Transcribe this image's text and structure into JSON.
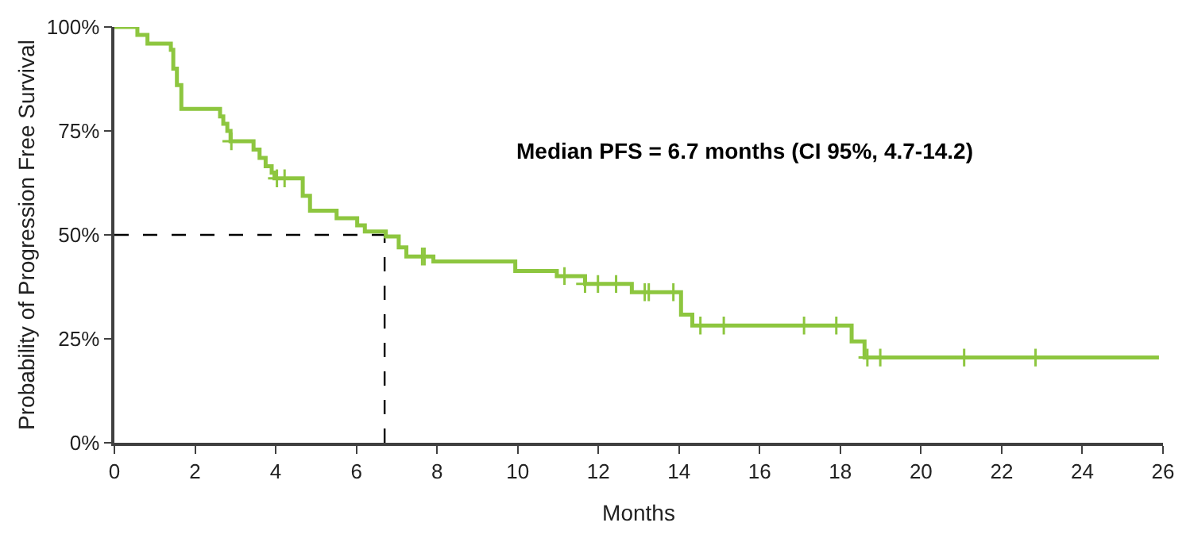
{
  "chart_data": {
    "type": "step",
    "xlabel": "Months",
    "ylabel": "Probability of Progression Free Survival",
    "xlim": [
      0,
      26
    ],
    "xticks": [
      0,
      2,
      4,
      6,
      8,
      10,
      12,
      14,
      16,
      18,
      20,
      22,
      24,
      26
    ],
    "ylim": [
      0,
      100
    ],
    "yticks": [
      {
        "value": 0,
        "label": "0%"
      },
      {
        "value": 25,
        "label": "25%"
      },
      {
        "value": 50,
        "label": "50%"
      },
      {
        "value": 75,
        "label": "75%"
      },
      {
        "value": 100,
        "label": "100%"
      }
    ],
    "grid": false,
    "annotations": [
      "Median PFS = 6.7 months (CI 95%, 4.7-14.2)"
    ],
    "ref_lines": [
      {
        "axis": "y",
        "value": 50,
        "line_style": "dashed",
        "color": "#000000"
      },
      {
        "axis": "x",
        "value": 6.7,
        "line_style": "dashed",
        "color": "#000000"
      }
    ],
    "series": [
      {
        "color": "#8dc63f",
        "marker": "none",
        "x": [
          0,
          0.57,
          0.82,
          1.4,
          1.46,
          1.55,
          1.66,
          2.62,
          2.7,
          2.8,
          2.88,
          3.45,
          3.6,
          3.75,
          3.9,
          3.97,
          4.67,
          4.85,
          5.51,
          6.02,
          6.21,
          6.73,
          7.05,
          7.24,
          7.91,
          9.94,
          10.97,
          11.67,
          12.83,
          14.05,
          14.33,
          18.28,
          18.6,
          25.9
        ],
        "values": [
          100,
          98.1,
          96,
          94.5,
          90,
          86,
          80.3,
          78.5,
          76.7,
          75,
          72.5,
          70.5,
          68.5,
          66.5,
          65,
          63.6,
          59.4,
          55.8,
          54.0,
          52.3,
          50.8,
          49.6,
          47.0,
          44.8,
          43.6,
          41.3,
          40.1,
          38.2,
          36.2,
          30.8,
          28.2,
          24.4,
          20.5,
          20.5
        ]
      },
      {
        "type": "scatter",
        "color": "#8dc63f",
        "marker": "cross",
        "x": [
          2.9,
          4.03,
          4.22,
          7.63,
          7.69,
          11.16,
          11.67,
          11.99,
          12.44,
          13.15,
          13.25,
          13.86,
          14.53,
          15.11,
          17.1,
          17.9,
          18.67,
          18.99,
          21.07,
          22.84
        ],
        "values": [
          72.5,
          63.6,
          63.6,
          44.8,
          44.8,
          40.1,
          38.2,
          38.2,
          38.2,
          36.2,
          36.2,
          36.2,
          28.2,
          28.2,
          28.2,
          28.2,
          20.5,
          20.5,
          20.5,
          20.5
        ]
      }
    ]
  }
}
